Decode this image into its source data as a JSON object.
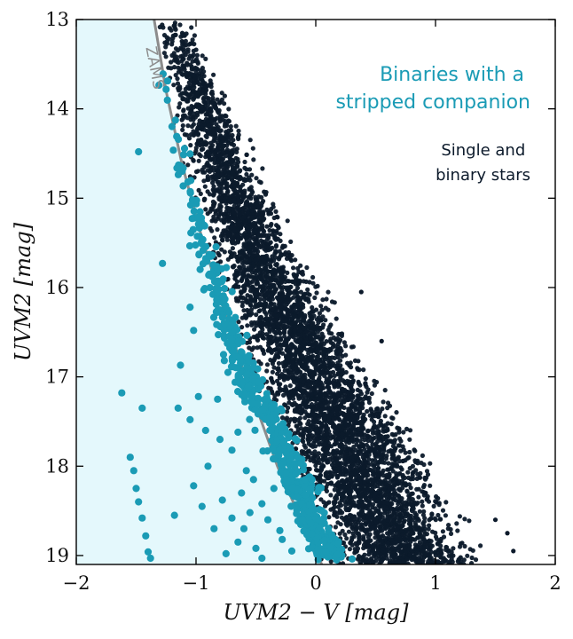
{
  "chart_data": {
    "type": "scatter",
    "xlabel": "UVM2 − V [mag]",
    "ylabel": "UVM2 [mag]",
    "xlim": [
      -2,
      2
    ],
    "ylim": [
      19.1,
      13
    ],
    "y_inverted": true,
    "x_ticks": [
      "-2",
      "-1",
      "0",
      "1",
      "2"
    ],
    "y_ticks": [
      "13",
      "14",
      "15",
      "16",
      "17",
      "18",
      "19"
    ],
    "grid": false,
    "zams": {
      "label": "ZAMS",
      "color": "#8c8c8c",
      "x": [
        -1.35,
        -1.25,
        -1.12,
        -0.96,
        -0.8,
        -0.64,
        -0.48,
        -0.32,
        -0.14,
        0.05
      ],
      "y": [
        13.0,
        13.8,
        14.6,
        15.4,
        16.1,
        16.8,
        17.4,
        18.0,
        18.55,
        19.1
      ]
    },
    "series": [
      {
        "name": "Single and binary stars",
        "color": "#0c1a2b",
        "distribution": "dense cloud of thousands of stars between the ZAMS and the red edge; sparse near UVM2 13, densest near UVM2 19",
        "blue_edge": {
          "x": [
            -1.35,
            -1.12,
            -0.8,
            -0.48,
            -0.14,
            0.05
          ],
          "y": [
            13.0,
            14.6,
            16.1,
            17.4,
            18.55,
            19.1
          ]
        },
        "red_edge": {
          "x": [
            -1.05,
            -0.6,
            -0.15,
            0.3,
            0.8,
            1.2,
            1.45
          ],
          "y": [
            13.0,
            14.2,
            15.5,
            16.5,
            17.5,
            18.4,
            19.1
          ]
        },
        "outliers": [
          {
            "x": 1.6,
            "y": 18.75
          },
          {
            "x": 1.65,
            "y": 18.95
          },
          {
            "x": 1.5,
            "y": 18.6
          },
          {
            "x": 0.38,
            "y": 16.05
          },
          {
            "x": 0.55,
            "y": 16.6
          }
        ]
      },
      {
        "name": "Binaries with a stripped companion",
        "color": "#1a9bb5",
        "fill_region_color": "#e4f8fc",
        "distribution": "several hundred systems clustered just blueward and redward of the ZAMS, densest near UVM2 17.5–19",
        "points_outside": [
          {
            "x": -1.48,
            "y": 14.48
          },
          {
            "x": -1.28,
            "y": 15.73
          },
          {
            "x": -1.05,
            "y": 16.22
          },
          {
            "x": -1.13,
            "y": 16.87
          },
          {
            "x": -1.02,
            "y": 16.48
          },
          {
            "x": -1.62,
            "y": 17.18
          },
          {
            "x": -1.45,
            "y": 17.35
          },
          {
            "x": -1.15,
            "y": 17.35
          },
          {
            "x": -0.98,
            "y": 17.22
          },
          {
            "x": -0.82,
            "y": 17.25
          },
          {
            "x": -1.05,
            "y": 17.48
          },
          {
            "x": -0.65,
            "y": 17.62
          },
          {
            "x": -0.8,
            "y": 17.7
          },
          {
            "x": -0.92,
            "y": 17.6
          },
          {
            "x": -0.7,
            "y": 17.82
          },
          {
            "x": -0.58,
            "y": 18.05
          },
          {
            "x": -0.9,
            "y": 18.0
          },
          {
            "x": -0.52,
            "y": 18.15
          },
          {
            "x": -1.02,
            "y": 18.22
          },
          {
            "x": -0.35,
            "y": 18.25
          },
          {
            "x": -0.62,
            "y": 18.3
          },
          {
            "x": -1.55,
            "y": 17.9
          },
          {
            "x": -1.52,
            "y": 18.05
          },
          {
            "x": -1.5,
            "y": 18.25
          },
          {
            "x": -0.78,
            "y": 18.38
          },
          {
            "x": -0.45,
            "y": 18.42
          },
          {
            "x": -1.48,
            "y": 18.4
          },
          {
            "x": -0.95,
            "y": 18.45
          },
          {
            "x": -0.55,
            "y": 18.52
          },
          {
            "x": -1.45,
            "y": 18.58
          },
          {
            "x": -0.7,
            "y": 18.58
          },
          {
            "x": -0.4,
            "y": 18.6
          },
          {
            "x": -1.42,
            "y": 18.78
          },
          {
            "x": -0.85,
            "y": 18.7
          },
          {
            "x": -0.3,
            "y": 18.72
          },
          {
            "x": -1.4,
            "y": 18.96
          },
          {
            "x": -1.38,
            "y": 19.03
          },
          {
            "x": -0.65,
            "y": 18.85
          },
          {
            "x": -0.5,
            "y": 18.92
          },
          {
            "x": -0.28,
            "y": 18.82
          },
          {
            "x": -0.2,
            "y": 18.95
          },
          {
            "x": -0.75,
            "y": 18.98
          },
          {
            "x": -0.45,
            "y": 19.03
          },
          {
            "x": -1.18,
            "y": 18.55
          },
          {
            "x": -0.6,
            "y": 18.7
          }
        ]
      }
    ],
    "legend": [
      {
        "label_lines": [
          "Binaries with a",
          "stripped companion"
        ],
        "color": "#1a9bb5",
        "placement": "top-right"
      },
      {
        "label_lines": [
          "Single and",
          "binary stars"
        ],
        "color": "#0c1a2b",
        "placement": "top-right"
      }
    ]
  }
}
